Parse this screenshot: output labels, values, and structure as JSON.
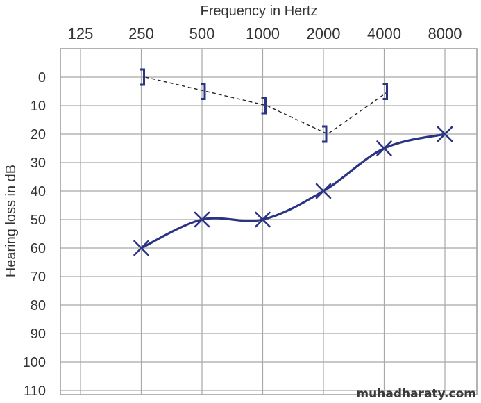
{
  "chart_data": {
    "type": "line",
    "title": "",
    "xlabel": "Frequency in Hertz",
    "ylabel": "Hearing loss in dB",
    "x_scale": "log2",
    "x_ticks": [
      "125",
      "250",
      "500",
      "1000",
      "2000",
      "4000",
      "8000"
    ],
    "x_tick_values": [
      125,
      250,
      500,
      1000,
      2000,
      4000,
      8000
    ],
    "y_ticks": [
      "0",
      "10",
      "20",
      "30",
      "40",
      "50",
      "60",
      "70",
      "80",
      "90",
      "100",
      "110"
    ],
    "y_tick_values": [
      0,
      10,
      20,
      30,
      40,
      50,
      60,
      70,
      80,
      90,
      100,
      110
    ],
    "ylim": [
      110,
      -10
    ],
    "y_inverted": true,
    "grid": true,
    "series": [
      {
        "marker": "x",
        "line_style": "solid",
        "color": "#2b3483",
        "points": [
          {
            "x": 250,
            "y": 60
          },
          {
            "x": 500,
            "y": 50
          },
          {
            "x": 1000,
            "y": 50
          },
          {
            "x": 2000,
            "y": 40
          },
          {
            "x": 4000,
            "y": 25
          },
          {
            "x": 8000,
            "y": 20
          }
        ]
      },
      {
        "marker": "bracket",
        "line_style": "dashed",
        "color": "#2b3483",
        "points": [
          {
            "x": 250,
            "y": 0
          },
          {
            "x": 500,
            "y": 5
          },
          {
            "x": 1000,
            "y": 10
          },
          {
            "x": 2000,
            "y": 20
          },
          {
            "x": 4000,
            "y": 5
          }
        ]
      }
    ]
  },
  "watermark": "muhadharaty.com"
}
